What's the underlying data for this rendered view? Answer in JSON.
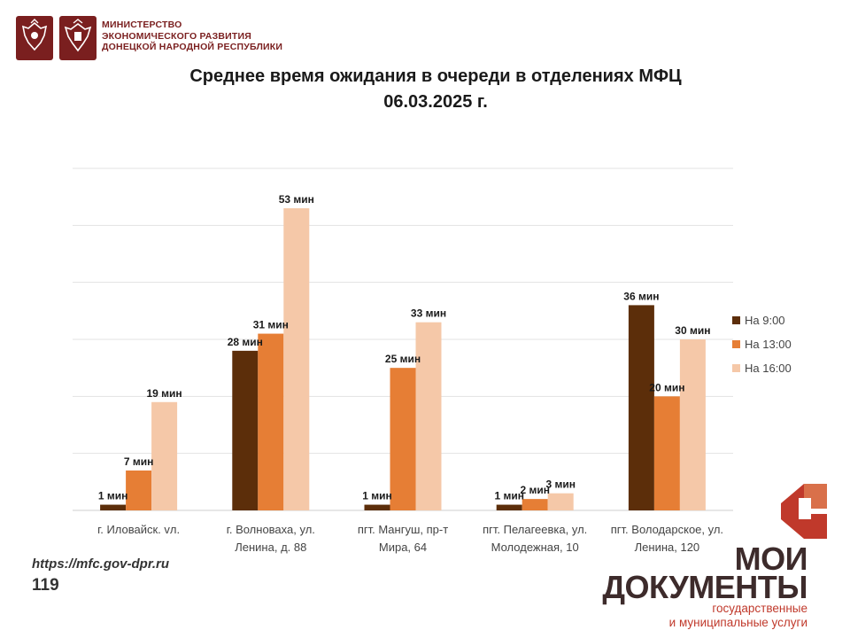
{
  "header": {
    "ministry_lines": [
      "МИНИСТЕРСТВО",
      "ЭКОНОМИЧЕСКОГО РАЗВИТИЯ",
      "ДОНЕЦКОЙ НАРОДНОЙ РЕСПУБЛИКИ"
    ]
  },
  "footer": {
    "url": "https://mfc.gov-dpr.ru",
    "page": "119"
  },
  "brand": {
    "line1": "МОИ",
    "line2": "ДОКУМЕНТЫ",
    "line3": "государственные",
    "line4": "и муниципальные услуги"
  },
  "colors": {
    "series": [
      "#5c2e0a",
      "#e67e35",
      "#f5c8a8"
    ],
    "brand_red": "#c0392b",
    "brand_dark": "#3d2b2b",
    "ministry": "#7a1f1f"
  },
  "chart_data": {
    "type": "bar",
    "title": "Среднее время ожидания в очереди в отделениях МФЦ",
    "subtitle": "06.03.2025 г.",
    "xlabel": "",
    "ylabel": "",
    "ylim": [
      0,
      60
    ],
    "grid": true,
    "legend_position": "right",
    "value_suffix": " мин",
    "categories": [
      [
        "г. Иловайск. vл.",
        ""
      ],
      [
        "г. Волноваха, ул.",
        "Ленина, д. 88"
      ],
      [
        "пгт. Мангуш, пр-т",
        "Мира, 64"
      ],
      [
        "пгт. Пелагеевка, ул.",
        "Молодежная, 10"
      ],
      [
        "пгт. Володарское, ул.",
        "Ленина, 120"
      ]
    ],
    "series": [
      {
        "name": "На 9:00",
        "values": [
          1,
          28,
          1,
          1,
          36
        ]
      },
      {
        "name": "На 13:00",
        "values": [
          7,
          31,
          25,
          2,
          20
        ]
      },
      {
        "name": "На 16:00",
        "values": [
          19,
          53,
          33,
          3,
          30
        ]
      }
    ]
  }
}
